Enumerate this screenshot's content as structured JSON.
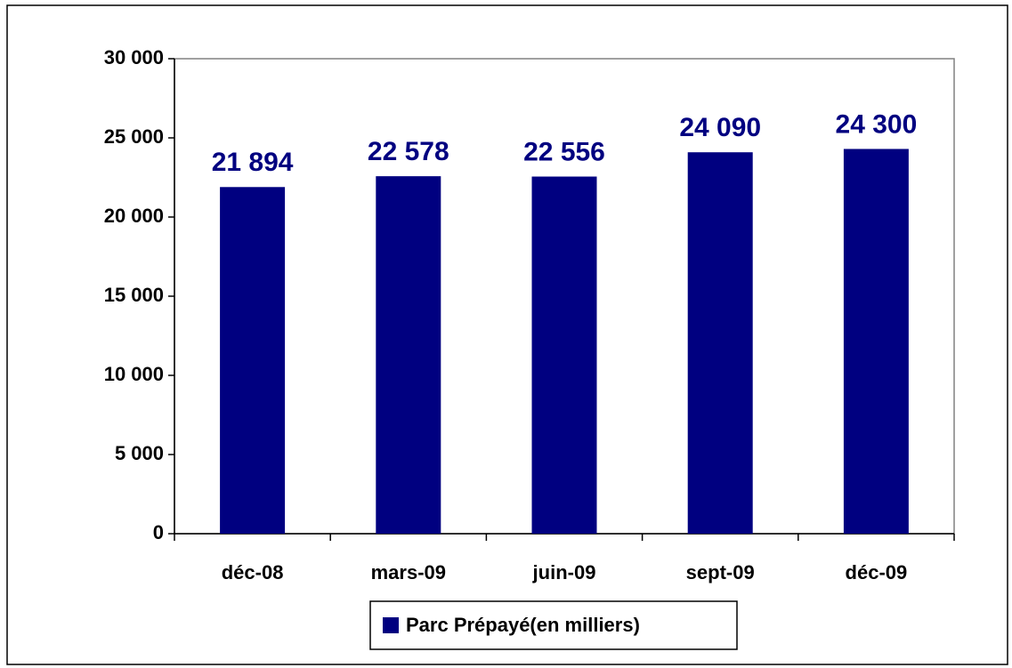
{
  "chart_data": {
    "type": "bar",
    "categories": [
      "déc-08",
      "mars-09",
      "juin-09",
      "sept-09",
      "déc-09"
    ],
    "series": [
      {
        "name": "Parc Prépayé(en milliers)",
        "color": "#000080",
        "values": [
          21894,
          22578,
          22556,
          24090,
          24300
        ],
        "value_labels": [
          "21 894",
          "22 578",
          "22 556",
          "24 090",
          "24 300"
        ]
      }
    ],
    "ylim": [
      0,
      30000
    ],
    "yticks": [
      0,
      {
        "value": 5000,
        "label": "5 000"
      },
      {
        "value": 10000,
        "label": "10 000"
      },
      {
        "value": 15000,
        "label": "15 000"
      },
      {
        "value": 20000,
        "label": "20 000"
      },
      {
        "value": 25000,
        "label": "25 000"
      },
      {
        "value": 30000,
        "label": "30 000"
      }
    ],
    "grid": false,
    "legend": "bottom"
  }
}
